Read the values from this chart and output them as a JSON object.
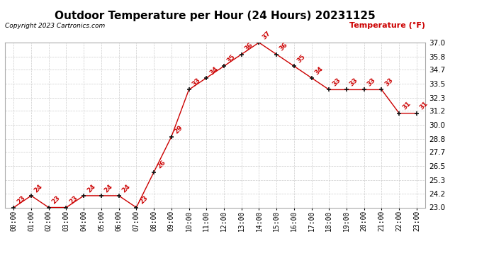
{
  "title": "Outdoor Temperature per Hour (24 Hours) 20231125",
  "copyright": "Copyright 2023 Cartronics.com",
  "legend_label": "Temperature (°F)",
  "hours": [
    "00:00",
    "01:00",
    "02:00",
    "03:00",
    "04:00",
    "05:00",
    "06:00",
    "07:00",
    "08:00",
    "09:00",
    "10:00",
    "11:00",
    "12:00",
    "13:00",
    "14:00",
    "15:00",
    "16:00",
    "17:00",
    "18:00",
    "19:00",
    "20:00",
    "21:00",
    "22:00",
    "23:00"
  ],
  "temps": [
    23,
    24,
    23,
    23,
    24,
    24,
    24,
    23,
    26,
    29,
    33,
    34,
    35,
    36,
    37,
    36,
    35,
    34,
    33,
    33,
    33,
    33,
    31,
    31
  ],
  "line_color": "#cc0000",
  "marker_color": "#111111",
  "background_color": "#ffffff",
  "grid_color": "#cccccc",
  "ylim_min": 23.0,
  "ylim_max": 37.0,
  "yticks": [
    23.0,
    24.2,
    25.3,
    26.5,
    27.7,
    28.8,
    30.0,
    31.2,
    32.3,
    33.5,
    34.7,
    35.8,
    37.0
  ],
  "title_fontsize": 11,
  "copyright_fontsize": 6.5,
  "legend_fontsize": 8,
  "annotation_color": "#cc0000",
  "annotation_fontsize": 6.5,
  "tick_fontsize": 7,
  "ytick_fontsize": 7.5
}
